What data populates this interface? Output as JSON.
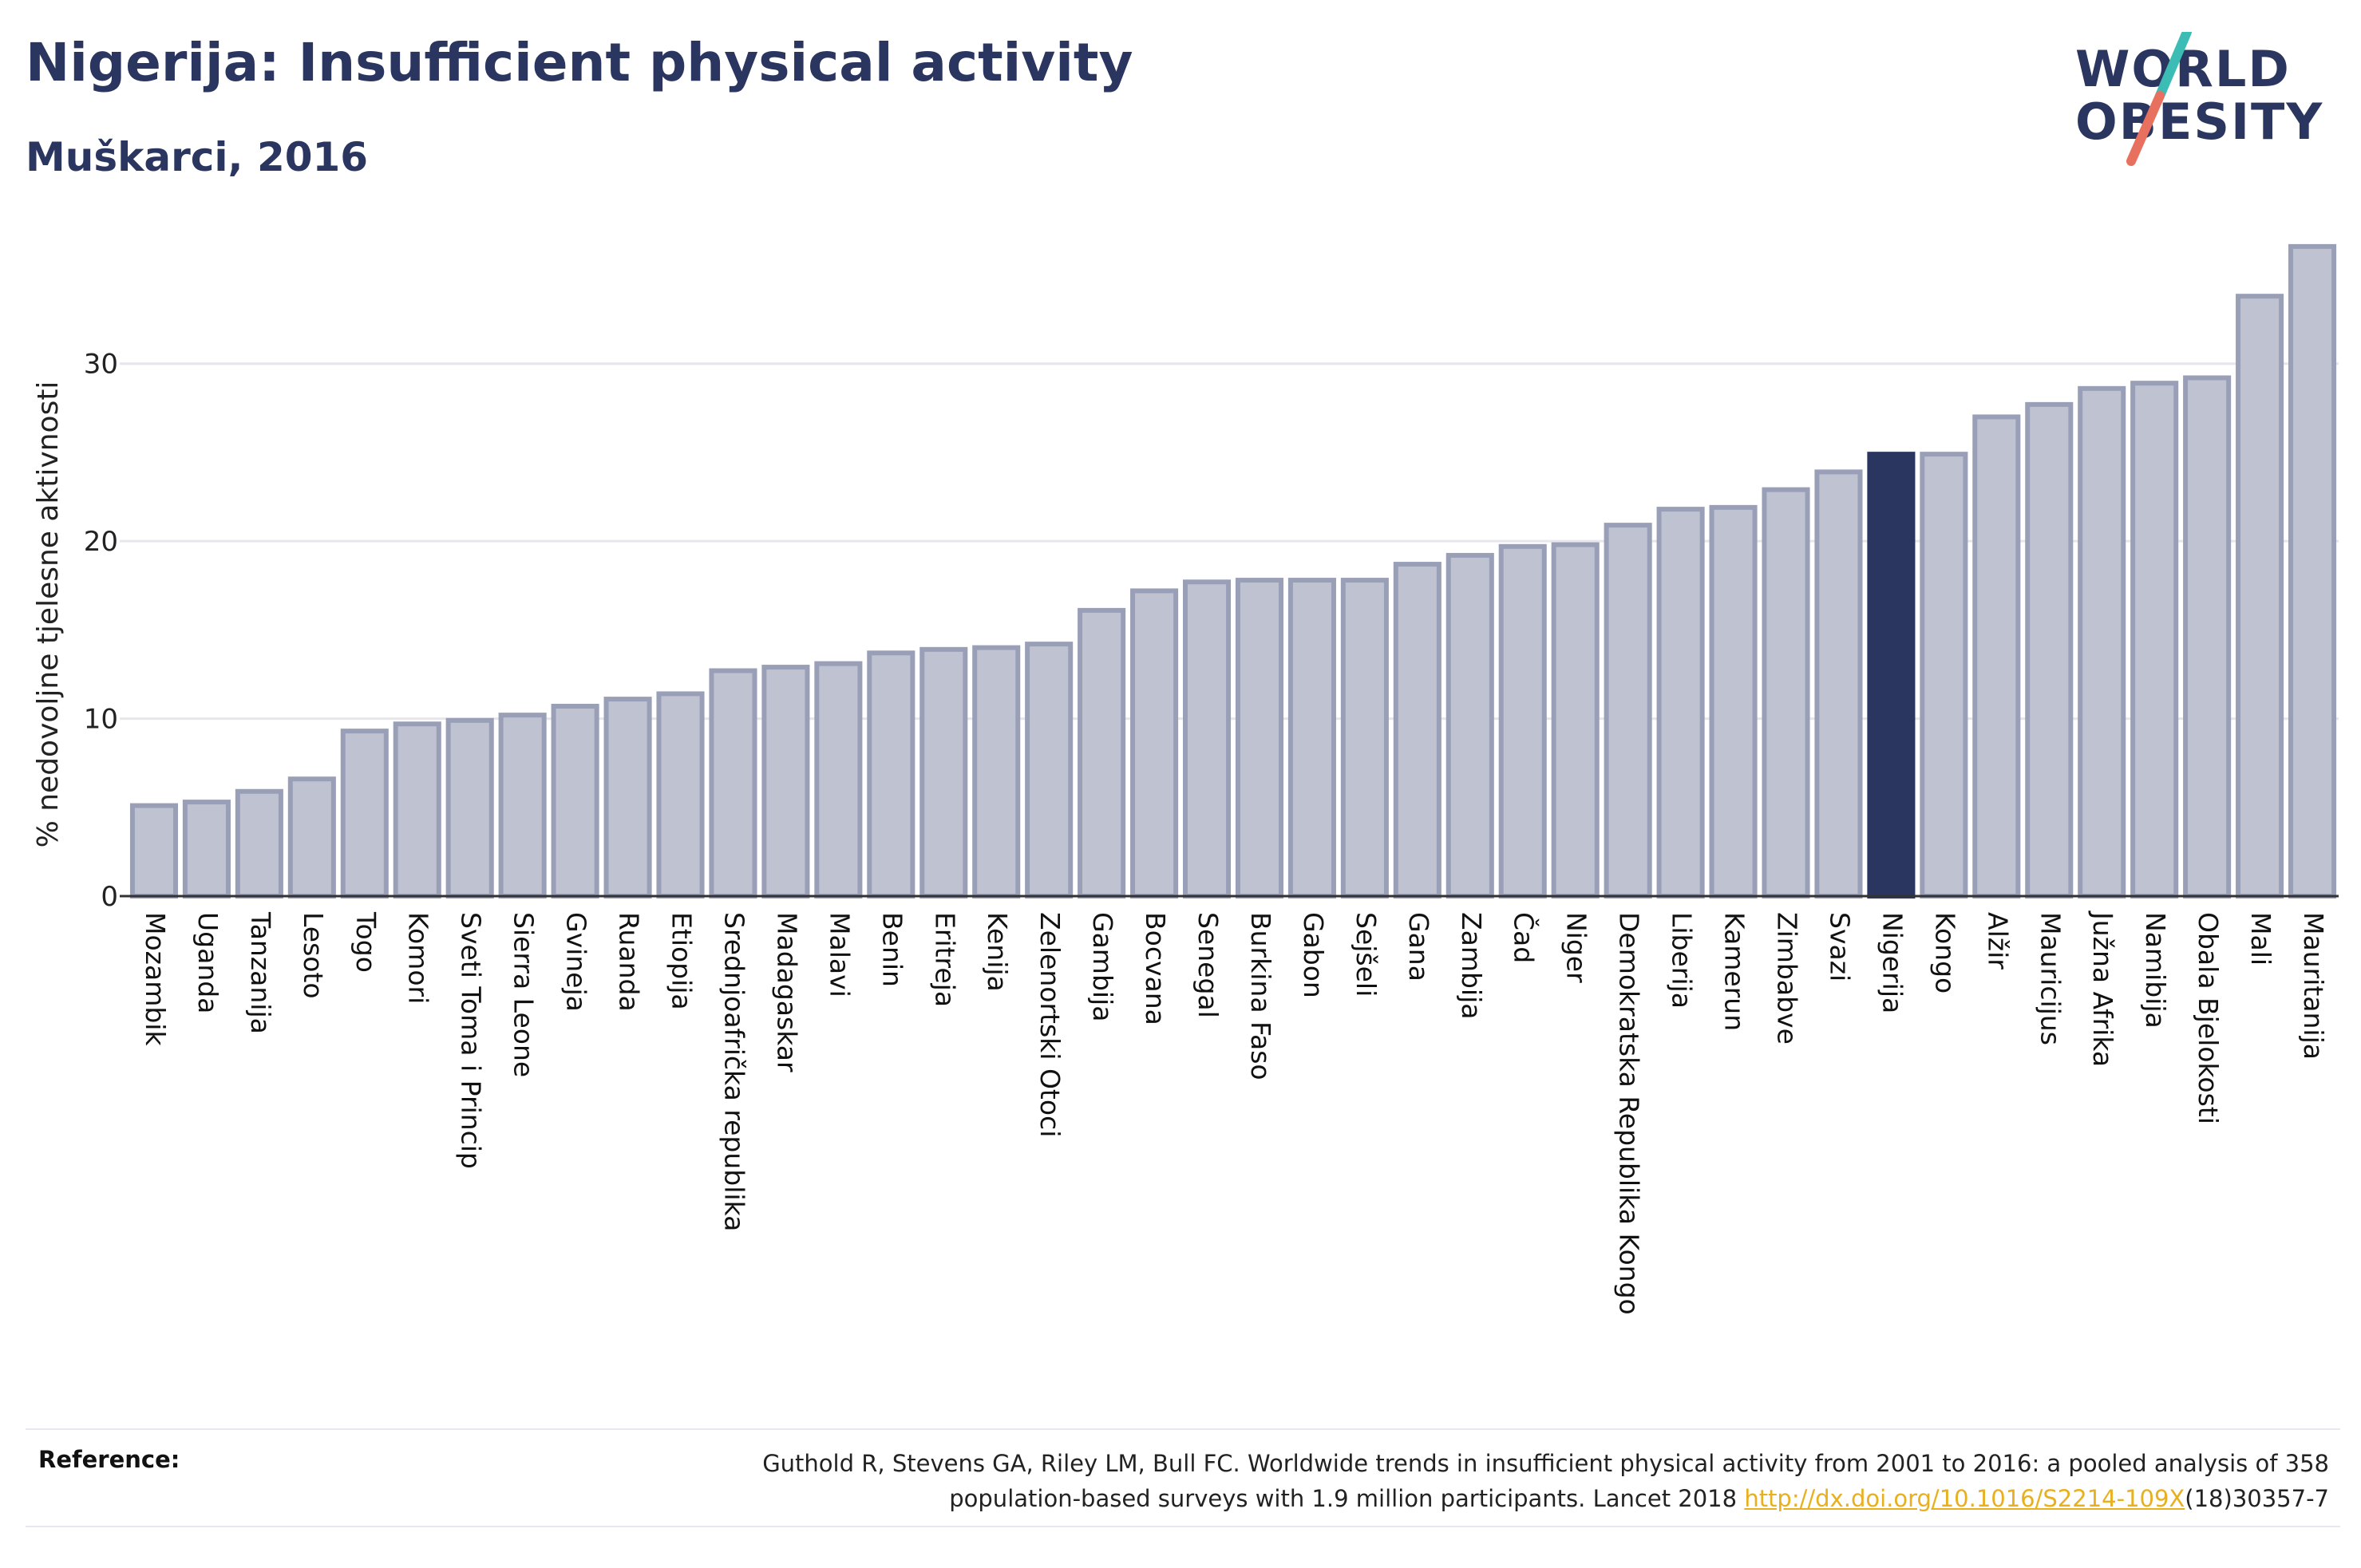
{
  "header": {
    "title": "Nigerija: Insufficient physical activity",
    "subtitle": "Muškarci, 2016"
  },
  "logo": {
    "line1": "WORLD",
    "line2": "OBESITY"
  },
  "reference": {
    "label": "Reference:",
    "text_line1": "Guthold R, Stevens GA, Riley LM, Bull FC. Worldwide trends in insufficient physical activity from 2001 to 2016: a pooled analysis of 358",
    "text_line2_pre": "population-based surveys with 1.9 million participants. Lancet 2018 ",
    "link": "http://dx.doi.org/10.1016/S2214-109X",
    "text_line2_post": "(18)30357-7"
  },
  "chart_data": {
    "type": "bar",
    "ylabel": "% nedovoljne tjelesne aktivnosti",
    "ylim": [
      0,
      37
    ],
    "yticks": [
      0,
      10,
      20,
      30
    ],
    "grid": true,
    "highlight": "Nigerija",
    "colors": {
      "bar": "#bfc3d1",
      "bar_edge": "#9a9fb8",
      "highlight": "#2b3660",
      "grid": "#e6e6ec",
      "axis": "#333333"
    },
    "categories": [
      "Mozambik",
      "Uganda",
      "Tanzanija",
      "Lesoto",
      "Togo",
      "Komori",
      "Sveti Toma i Princip",
      "Sierra Leone",
      "Gvineja",
      "Ruanda",
      "Etiopija",
      "Srednjoafrička republika",
      "Madagaskar",
      "Malavi",
      "Benin",
      "Eritreja",
      "Kenija",
      "Zelenortski Otoci",
      "Gambija",
      "Bocvana",
      "Senegal",
      "Burkina Faso",
      "Gabon",
      "Sejšeli",
      "Gana",
      "Zambija",
      "Čad",
      "Niger",
      "Demokratska Republika Kongo",
      "Liberija",
      "Kamerun",
      "Zimbabve",
      "Svazi",
      "Nigerija",
      "Kongo",
      "Alžir",
      "Mauricijus",
      "Južna Afrika",
      "Namibija",
      "Obala Bjelokosti",
      "Mali",
      "Mauritanija"
    ],
    "values": [
      5.1,
      5.3,
      5.9,
      6.6,
      9.3,
      9.7,
      9.9,
      10.2,
      10.7,
      11.1,
      11.4,
      12.7,
      12.9,
      13.1,
      13.7,
      13.9,
      14.0,
      14.2,
      16.1,
      17.2,
      17.7,
      17.8,
      17.8,
      17.8,
      18.7,
      19.2,
      19.7,
      19.8,
      20.9,
      21.8,
      21.9,
      22.9,
      23.9,
      24.9,
      24.9,
      27.0,
      27.7,
      28.6,
      28.9,
      29.2,
      33.8,
      36.6
    ]
  }
}
